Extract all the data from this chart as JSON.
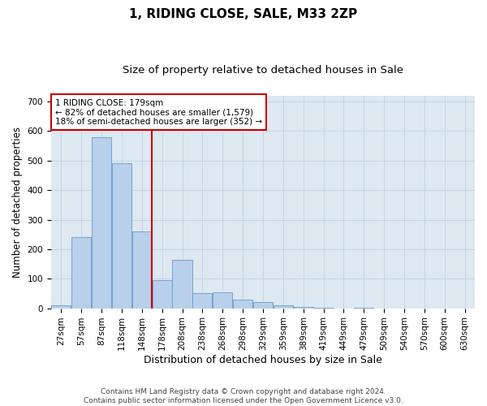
{
  "title": "1, RIDING CLOSE, SALE, M33 2ZP",
  "subtitle": "Size of property relative to detached houses in Sale",
  "xlabel": "Distribution of detached houses by size in Sale",
  "ylabel": "Number of detached properties",
  "bins": [
    "27sqm",
    "57sqm",
    "87sqm",
    "118sqm",
    "148sqm",
    "178sqm",
    "208sqm",
    "238sqm",
    "268sqm",
    "298sqm",
    "329sqm",
    "359sqm",
    "389sqm",
    "419sqm",
    "449sqm",
    "479sqm",
    "509sqm",
    "540sqm",
    "570sqm",
    "600sqm",
    "630sqm"
  ],
  "values": [
    10,
    240,
    580,
    490,
    260,
    95,
    165,
    50,
    55,
    30,
    20,
    10,
    5,
    2,
    0,
    1,
    0,
    0,
    0,
    0,
    0
  ],
  "bar_color": "#b8d0ea",
  "bar_edge_color": "#6699cc",
  "grid_color": "#c8d4e8",
  "background_color": "#dde8f0",
  "property_line_color": "#cc0000",
  "annotation_text": "1 RIDING CLOSE: 179sqm\n← 82% of detached houses are smaller (1,579)\n18% of semi-detached houses are larger (352) →",
  "annotation_box_color": "#cc0000",
  "ylim": [
    0,
    720
  ],
  "yticks": [
    0,
    100,
    200,
    300,
    400,
    500,
    600,
    700
  ],
  "footnote": "Contains HM Land Registry data © Crown copyright and database right 2024.\nContains public sector information licensed under the Open Government Licence v3.0.",
  "title_fontsize": 11,
  "subtitle_fontsize": 9.5,
  "xlabel_fontsize": 9,
  "ylabel_fontsize": 8.5,
  "tick_fontsize": 7.5,
  "annotation_fontsize": 7.5,
  "footnote_fontsize": 6.5
}
